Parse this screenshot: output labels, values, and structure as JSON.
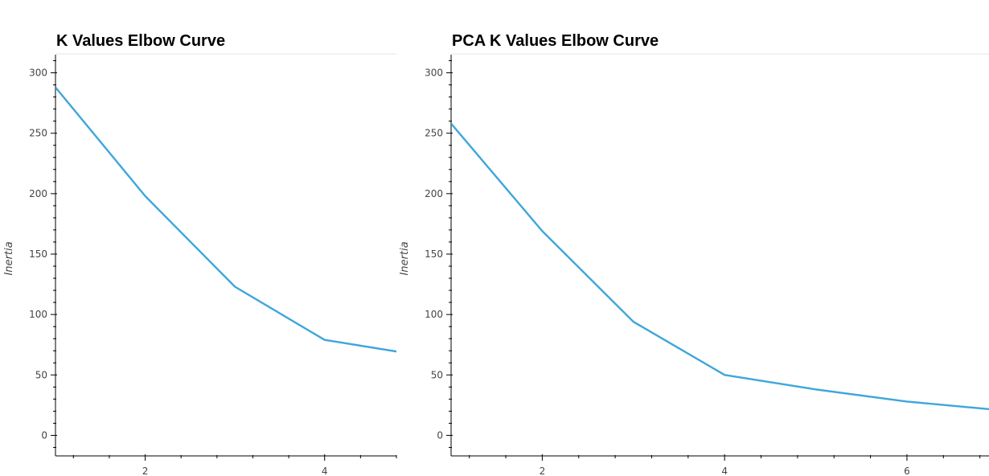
{
  "chart_data": [
    {
      "type": "line",
      "title": "K Values Elbow Curve",
      "xlabel": "",
      "ylabel": "Inertia",
      "x": [
        1,
        2,
        3,
        4,
        5
      ],
      "series": [
        {
          "values": [
            288,
            198,
            123,
            79,
            67
          ],
          "color": "#3ea6db"
        }
      ],
      "xlim": [
        1,
        4.8
      ],
      "ylim": [
        -17,
        315
      ],
      "xticks": [
        2,
        4
      ],
      "yticks": [
        0,
        50,
        100,
        150,
        200,
        250,
        300
      ],
      "grid": false
    },
    {
      "type": "line",
      "title": "PCA K Values Elbow Curve",
      "xlabel": "",
      "ylabel": "Inertia",
      "x": [
        1,
        2,
        3,
        4,
        5,
        6,
        7
      ],
      "series": [
        {
          "values": [
            258,
            169,
            94,
            50,
            38,
            28,
            21
          ],
          "color": "#3ea6db"
        }
      ],
      "xlim": [
        1,
        6.9
      ],
      "ylim": [
        -17,
        315
      ],
      "xticks": [
        2,
        4,
        6
      ],
      "yticks": [
        0,
        50,
        100,
        150,
        200,
        250,
        300
      ],
      "grid": false
    }
  ]
}
